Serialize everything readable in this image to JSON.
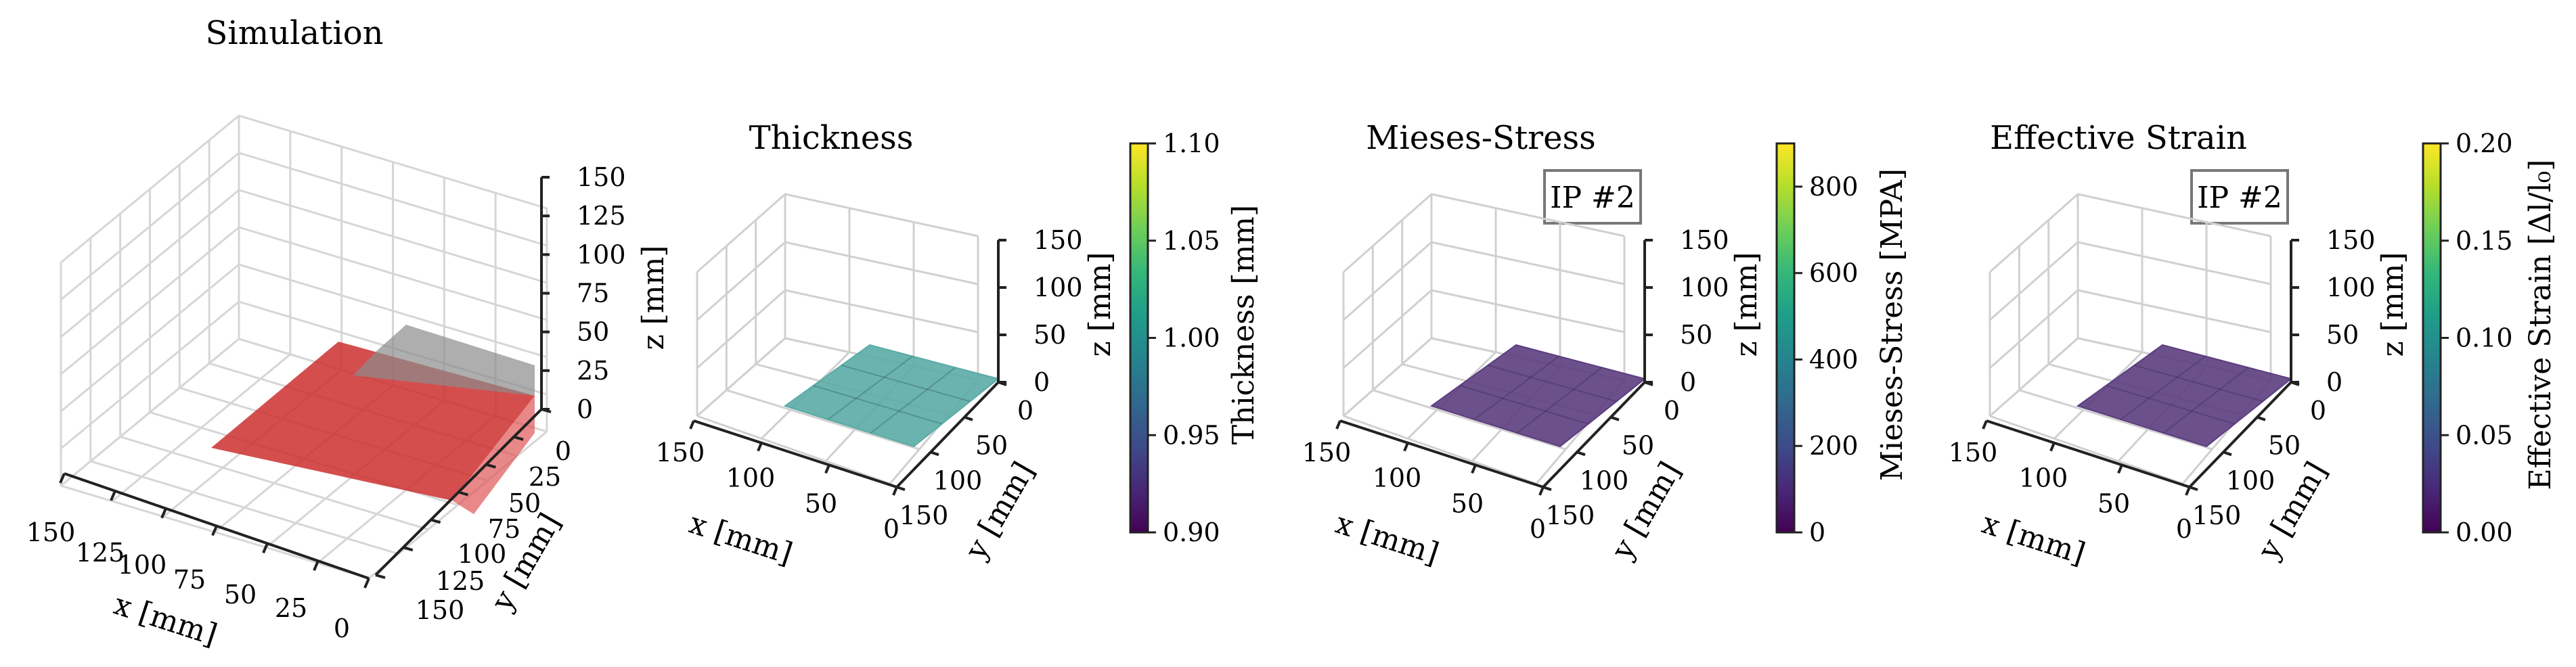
{
  "figure": {
    "background": "#ffffff"
  },
  "chart_data": [
    {
      "type": "surface3d",
      "title": "Simulation",
      "xlabel": "x [mm]",
      "ylabel": "y [mm]",
      "xlim": [
        0,
        150
      ],
      "ylim": [
        0,
        150
      ],
      "zlim": [
        0,
        150
      ],
      "xticks": [
        "150",
        "125",
        "100",
        "75",
        "50",
        "25",
        "0"
      ],
      "yticks": [
        "0",
        "25",
        "50",
        "75",
        "100",
        "125",
        "150"
      ],
      "zticks": [
        "0",
        "25",
        "50",
        "75",
        "100",
        "125",
        "150"
      ],
      "grid": true,
      "surfaces": [
        {
          "name": "",
          "color": "#cc2f2f",
          "opacity": 0.85,
          "x": [
            0,
            100
          ],
          "y": [
            0,
            100
          ],
          "z": 0
        },
        {
          "name": "",
          "color": "#8c8c8c",
          "opacity": 0.7,
          "x": [
            0,
            25
          ],
          "y": [
            0,
            100
          ],
          "z": [
            0,
            25
          ]
        }
      ]
    },
    {
      "type": "surface3d",
      "title": "Thickness",
      "xlabel": "x [mm]",
      "ylabel": "y [mm]",
      "zlabel": "z [mm]",
      "xticks": [
        "150",
        "100",
        "50",
        "0"
      ],
      "yticks": [
        "0",
        "50",
        "100",
        "150"
      ],
      "zticks": [
        "0",
        "50",
        "100",
        "150"
      ],
      "grid": true,
      "surface": {
        "x": [
          0,
          100
        ],
        "y": [
          0,
          100
        ],
        "z": 0,
        "value": 1.0,
        "color": "#5aaba5"
      },
      "colorbar": {
        "label": "Thickness [mm]",
        "range": [
          0.9,
          1.1
        ],
        "ticks": [
          "0.90",
          "0.95",
          "1.00",
          "1.05",
          "1.10"
        ]
      }
    },
    {
      "type": "surface3d",
      "title": "Mieses-Stress",
      "annotation": "IP #2",
      "xlabel": "x [mm]",
      "ylabel": "y [mm]",
      "zlabel": "z [mm]",
      "xticks": [
        "150",
        "100",
        "50",
        "0"
      ],
      "yticks": [
        "0",
        "50",
        "100",
        "150"
      ],
      "zticks": [
        "0",
        "50",
        "100",
        "150"
      ],
      "grid": true,
      "surface": {
        "x": [
          0,
          100
        ],
        "y": [
          0,
          100
        ],
        "z": 0,
        "value": 0,
        "color": "#5c3d80"
      },
      "colorbar": {
        "label": "Mieses-Stress [MPA]",
        "range": [
          0,
          900
        ],
        "ticks": [
          "0",
          "200",
          "400",
          "600",
          "800"
        ]
      }
    },
    {
      "type": "surface3d",
      "title": "Effective Strain",
      "annotation": "IP #2",
      "xlabel": "x [mm]",
      "ylabel": "y [mm]",
      "zlabel": "z [mm]",
      "xticks": [
        "150",
        "100",
        "50",
        "0"
      ],
      "yticks": [
        "0",
        "50",
        "100",
        "150"
      ],
      "zticks": [
        "0",
        "50",
        "100",
        "150"
      ],
      "grid": true,
      "surface": {
        "x": [
          0,
          100
        ],
        "y": [
          0,
          100
        ],
        "z": 0,
        "value": 0,
        "color": "#5c3d80"
      },
      "colorbar": {
        "label": "Effective Strain [Δl/l₀]",
        "range": [
          0,
          0.2
        ],
        "ticks": [
          "0.00",
          "0.05",
          "0.10",
          "0.15",
          "0.20"
        ]
      }
    }
  ],
  "colormap": [
    "#440154",
    "#482878",
    "#3e4a89",
    "#31688e",
    "#26828e",
    "#1f9e89",
    "#35b779",
    "#6ece58",
    "#b5de2b",
    "#fde725"
  ]
}
